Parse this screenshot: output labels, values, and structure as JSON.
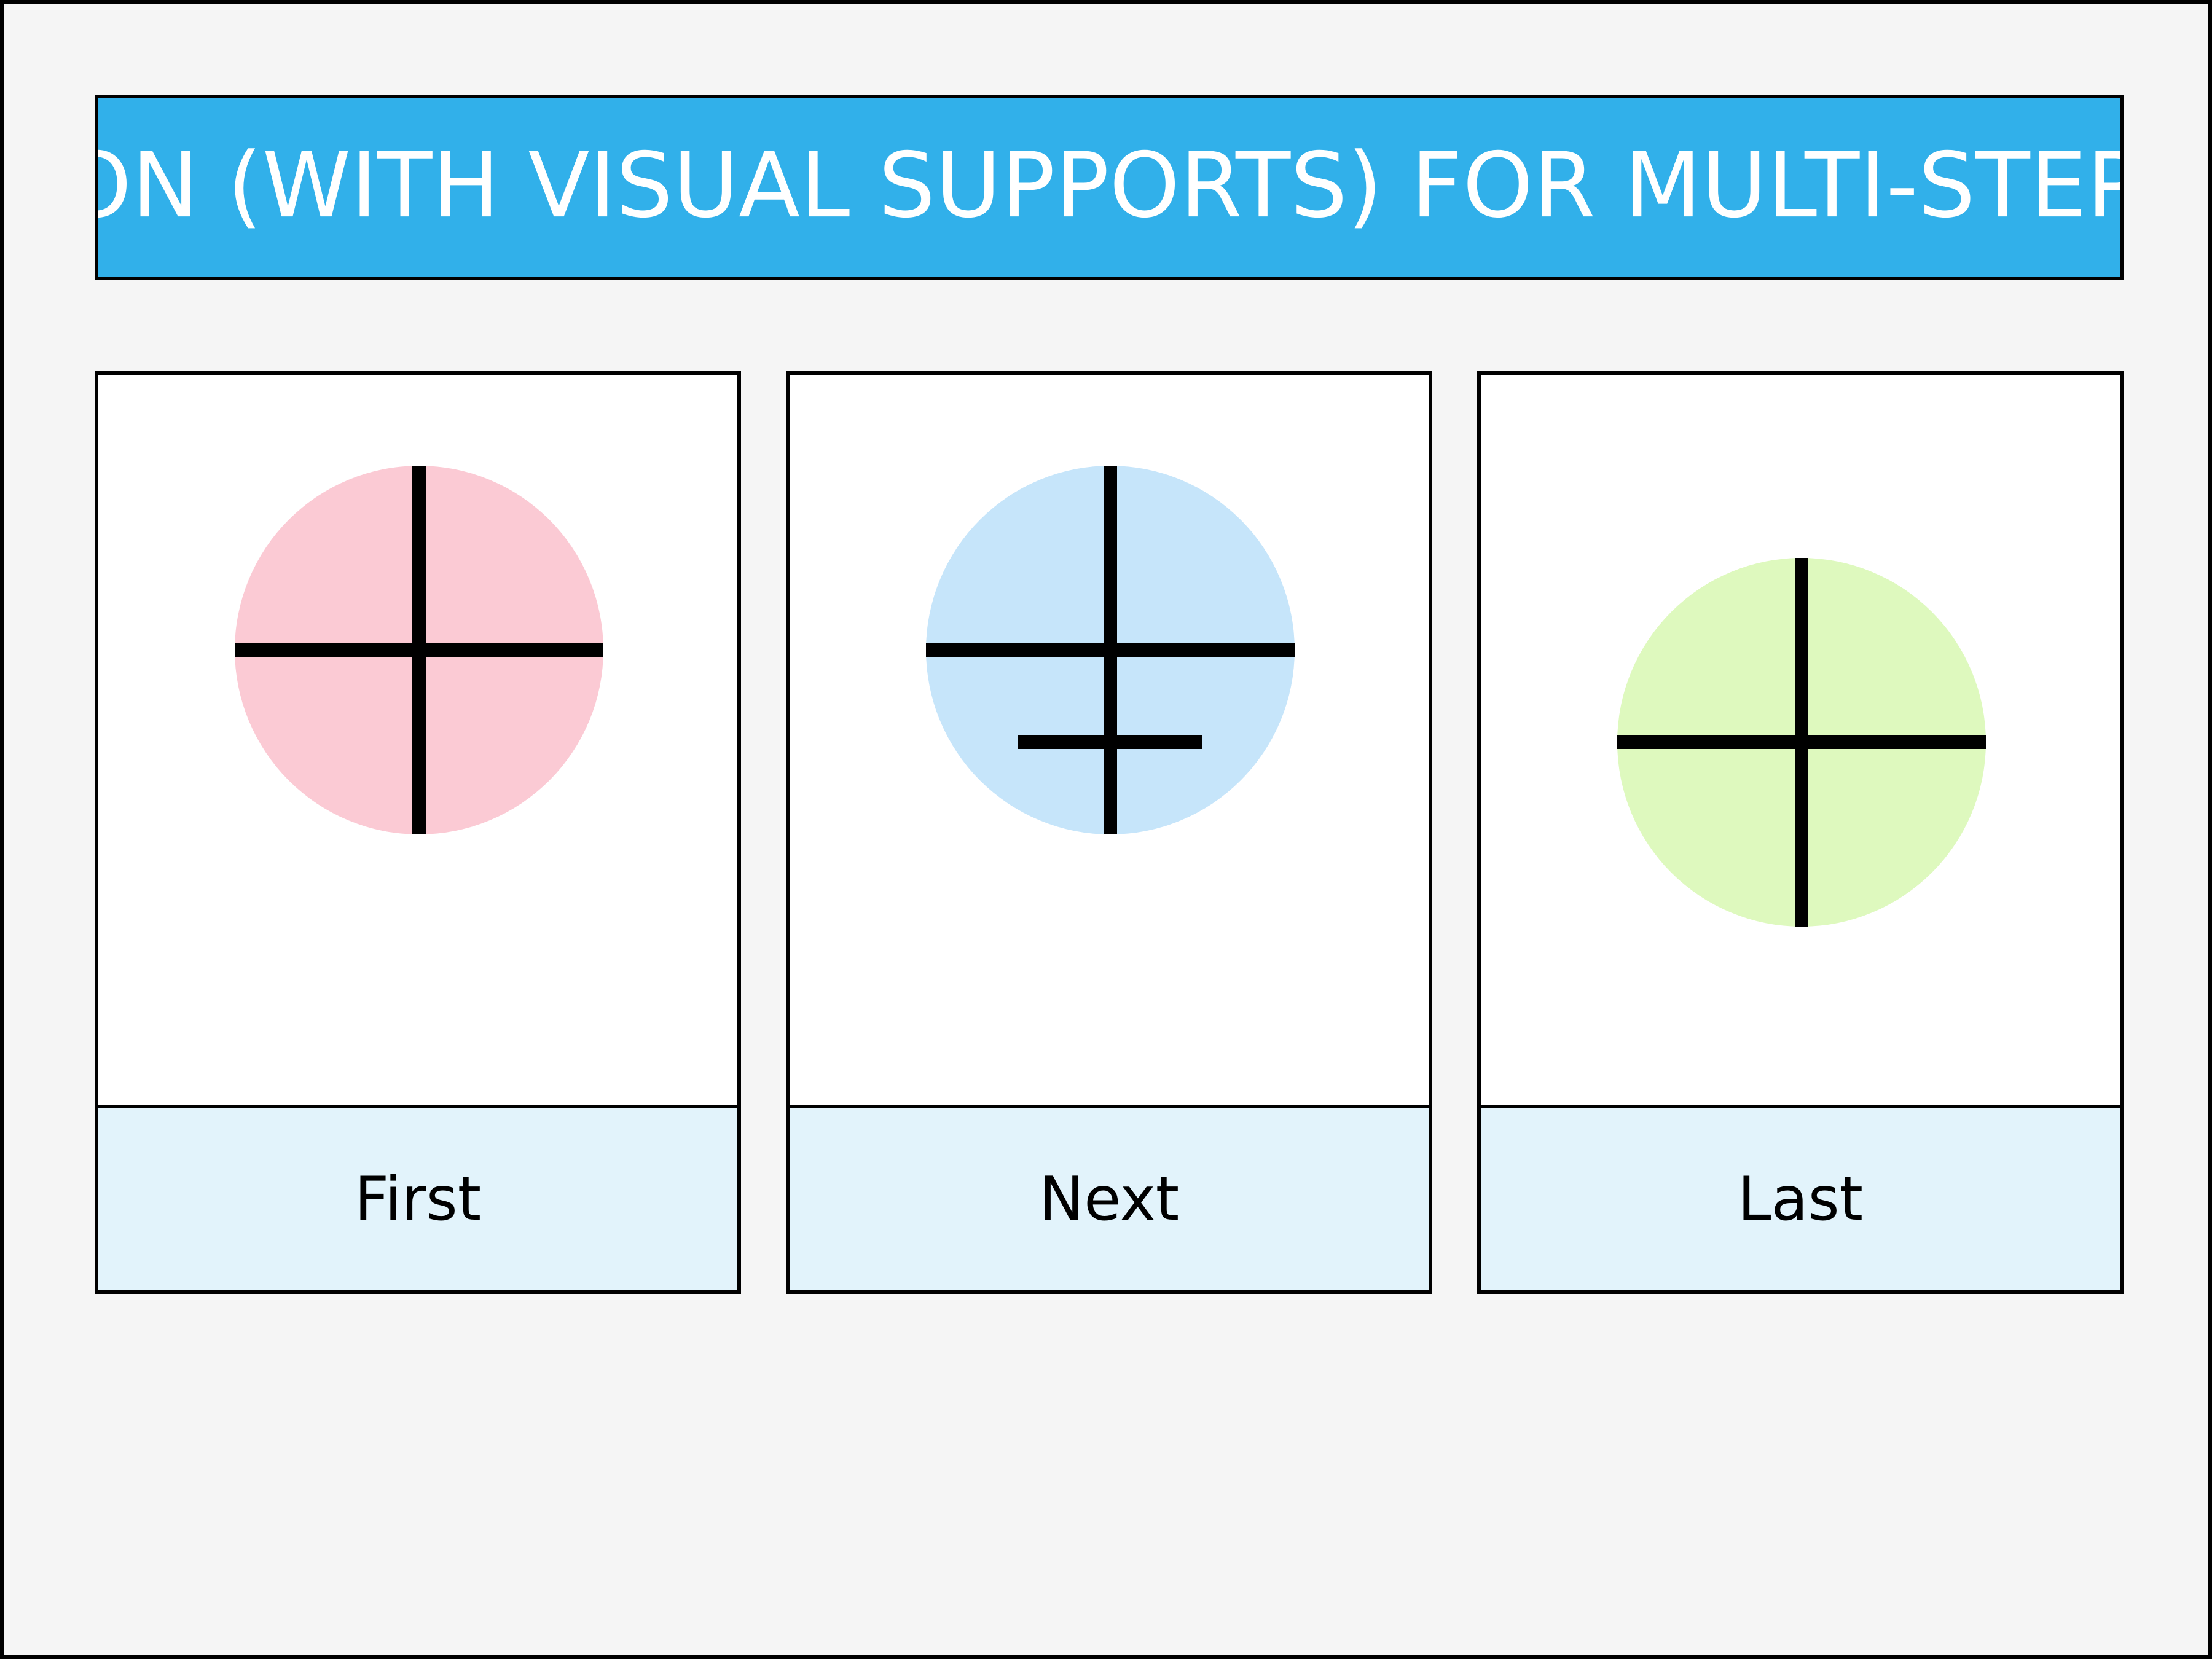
{
  "title": "TION (WITH VISUAL SUPPORTS) FOR MULTI-STEP D",
  "colors": {
    "background": "#f5f5f5",
    "title_banner": "#31b0ea",
    "title_text": "#ffffff",
    "caption_background": "#e2f3fb",
    "outline": "#000000"
  },
  "cards": [
    {
      "label": "First",
      "icon": "target-crosshair-icon",
      "circle_color": "#fbcad4",
      "extra_crossbar": false
    },
    {
      "label": "Next",
      "icon": "target-crosshair-double-bar-icon",
      "circle_color": "#c6e5fa",
      "extra_crossbar": true
    },
    {
      "label": "Last",
      "icon": "target-crosshair-icon",
      "circle_color": "#def9be",
      "extra_crossbar": false
    }
  ]
}
